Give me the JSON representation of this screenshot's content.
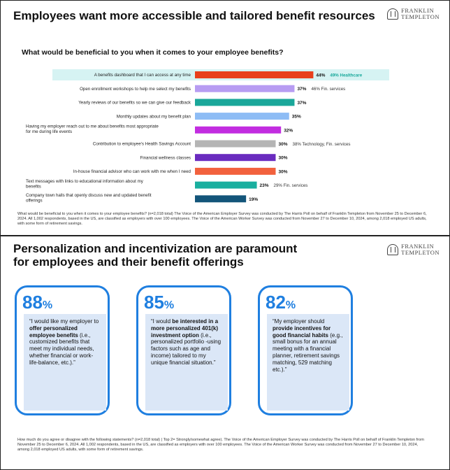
{
  "brand": {
    "logo_line1": "FRANKLIN",
    "logo_line2": "TEMPLETON"
  },
  "slide1": {
    "title": "Employees want more accessible and tailored benefit resources",
    "question": "What would be beneficial to you when it comes to your employee benefits?",
    "footnote": "What would be beneficial to you when it comes to your employee benefits? (n=2,018 total)  The Voice of the American Employer Survey was conducted by The Harris Poll on behalf of Franklin Templeton from November 25 to December 6, 2024. All 1,002 respondents, based in the US, are classified as employers with over 100 employees. The Voice of the American Worker Survey was conducted from November 27 to December 10, 2024, among 2,018 employed US adults, with some form of retirement savings."
  },
  "chart_data": {
    "type": "bar",
    "orientation": "horizontal",
    "categories": [
      "A benefits dashboard that I can access at any time",
      "Open enrollment workshops to help me select my benefits",
      "Yearly reviews of our benefits so we can give our feedback",
      "Monthly updates about my benefit plan",
      "Having my employer reach out to me about benefits most appropriate for me during life events",
      "Contribution to employee's Health Savings Account",
      "Financial wellness classes",
      "In-house financial advisor who can work with me when I need",
      "Text messages with links to educational information about my benefits",
      "Company town halls that openly discuss new and updated benefit offerings"
    ],
    "values": [
      44,
      37,
      37,
      35,
      32,
      30,
      30,
      30,
      23,
      19
    ],
    "value_labels": [
      "44%",
      "37%",
      "37%",
      "35%",
      "32%",
      "30%",
      "30%",
      "30%",
      "23%",
      "19%"
    ],
    "colors": [
      "#e8401c",
      "#b79cf2",
      "#1aa79a",
      "#8dbcf5",
      "#c22de0",
      "#b5b5b5",
      "#6a2bbf",
      "#f2613d",
      "#1aaf9f",
      "#13557a"
    ],
    "annotations": [
      {
        "index": 0,
        "text": "49% Healthcare",
        "highlight": true
      },
      {
        "index": 1,
        "text": "46% Fin. services"
      },
      {
        "index": 5,
        "text": "38% Technology, Fin. services"
      },
      {
        "index": 8,
        "text": "29% Fin. services"
      }
    ],
    "highlight_row_color": "#d6f3f3",
    "highlight_text_color": "#19a99b",
    "xlim": [
      0,
      100
    ],
    "grid": false
  },
  "slide2": {
    "title": "Personalization and incentivization are paramount for employees and their benefit offerings",
    "accent": "#1f7fe0",
    "cards": [
      {
        "pct": "88",
        "pct_sign": "%",
        "quote_a": "“I would like my employer to ",
        "quote_bold": "offer personalized employee benefits",
        "quote_b": " (i.e., customized benefits that meet my individual needs, whether financial or work-life-balance, etc.).”"
      },
      {
        "pct": "85",
        "pct_sign": "%",
        "quote_a": "“I would ",
        "quote_bold": "be interested in a more personalized 401(k) investment option",
        "quote_b": " (i.e., personalized portfolio -using factors such as age and income) tailored to my unique financial situation.”"
      },
      {
        "pct": "82",
        "pct_sign": "%",
        "quote_a": "“My employer should ",
        "quote_bold": "provide incentives for good financial habits",
        "quote_b": " (e.g., small bonus for an annual meeting with a financial planner, retirement savings matching, 529 matching etc.).”"
      }
    ],
    "footnote": "How much do you agree or disagree with the following statements? (n=2,018 total) | Top 2= Strongly/somewhat agree). The Voice of the American Employer Survey was conducted by The Harris Poll on behalf of Franklin Templeton from November 25 to December 6, 2024. All 1,002 respondents, based in the US, are classified as employers with over 100 employees. The Voice of the American Worker Survey was conducted from November 27 to December 10, 2024, among 2,018 employed US adults, with some form of retirement savings."
  }
}
